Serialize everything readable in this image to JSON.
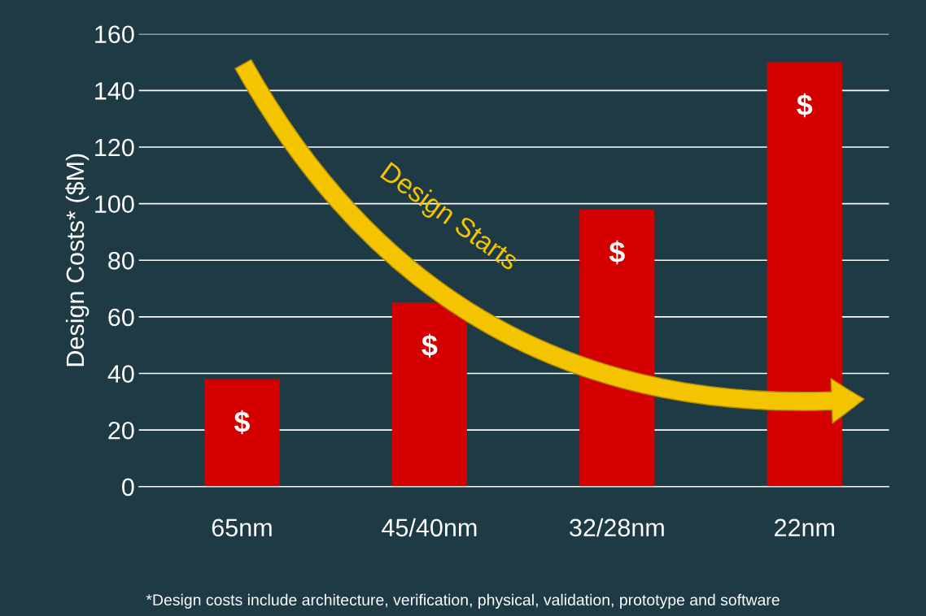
{
  "chart_data": {
    "type": "bar",
    "ylabel": "Design Costs* ($M)",
    "categories": [
      "65nm",
      "45/40nm",
      "32/28nm",
      "22nm"
    ],
    "values": [
      38,
      65,
      98,
      150
    ],
    "color": "#d40000",
    "ylim": [
      0,
      160
    ],
    "yticks": [
      0,
      20,
      40,
      60,
      80,
      100,
      120,
      140,
      160
    ],
    "grid": "y",
    "annotations": [
      "Design Starts",
      "$",
      "$",
      "$",
      "$",
      "*Design costs include architecture, verification, physical, validation, prototype and software"
    ]
  }
}
